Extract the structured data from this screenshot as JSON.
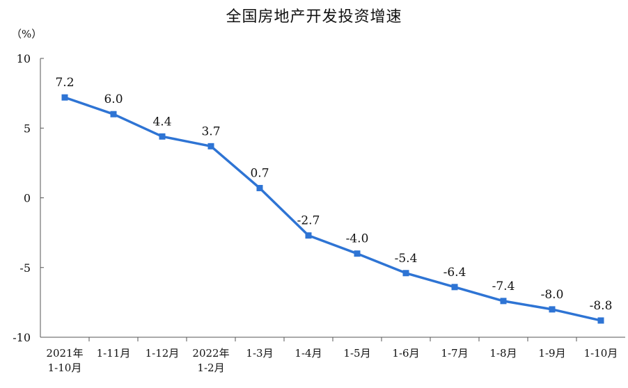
{
  "chart_data": {
    "type": "line",
    "title": "全国房地产开发投资增速",
    "ylabel": "（%）",
    "xlabel": "",
    "ylim": [
      -10,
      10
    ],
    "yticks": [
      "10",
      "5",
      "0",
      "-5",
      "-10"
    ],
    "ytick_values": [
      10,
      5,
      0,
      -5,
      -10
    ],
    "categories": [
      [
        "2021年",
        "1-10月"
      ],
      [
        "1-11月"
      ],
      [
        "1-12月"
      ],
      [
        "2022年",
        "1-2月"
      ],
      [
        "1-3月"
      ],
      [
        "1-4月"
      ],
      [
        "1-5月"
      ],
      [
        "1-6月"
      ],
      [
        "1-7月"
      ],
      [
        "1-8月"
      ],
      [
        "1-9月"
      ],
      [
        "1-10月"
      ]
    ],
    "values": [
      7.2,
      6.0,
      4.4,
      3.7,
      0.7,
      -2.7,
      -4.0,
      -5.4,
      -6.4,
      -7.4,
      -8.0,
      -8.8
    ],
    "data_labels": [
      "7.2",
      "6.0",
      "4.4",
      "3.7",
      "0.7",
      "-2.7",
      "-4.0",
      "-5.4",
      "-6.4",
      "-7.4",
      "-8.0",
      "-8.8"
    ],
    "series_color": "#2e74d4",
    "grid": false
  }
}
